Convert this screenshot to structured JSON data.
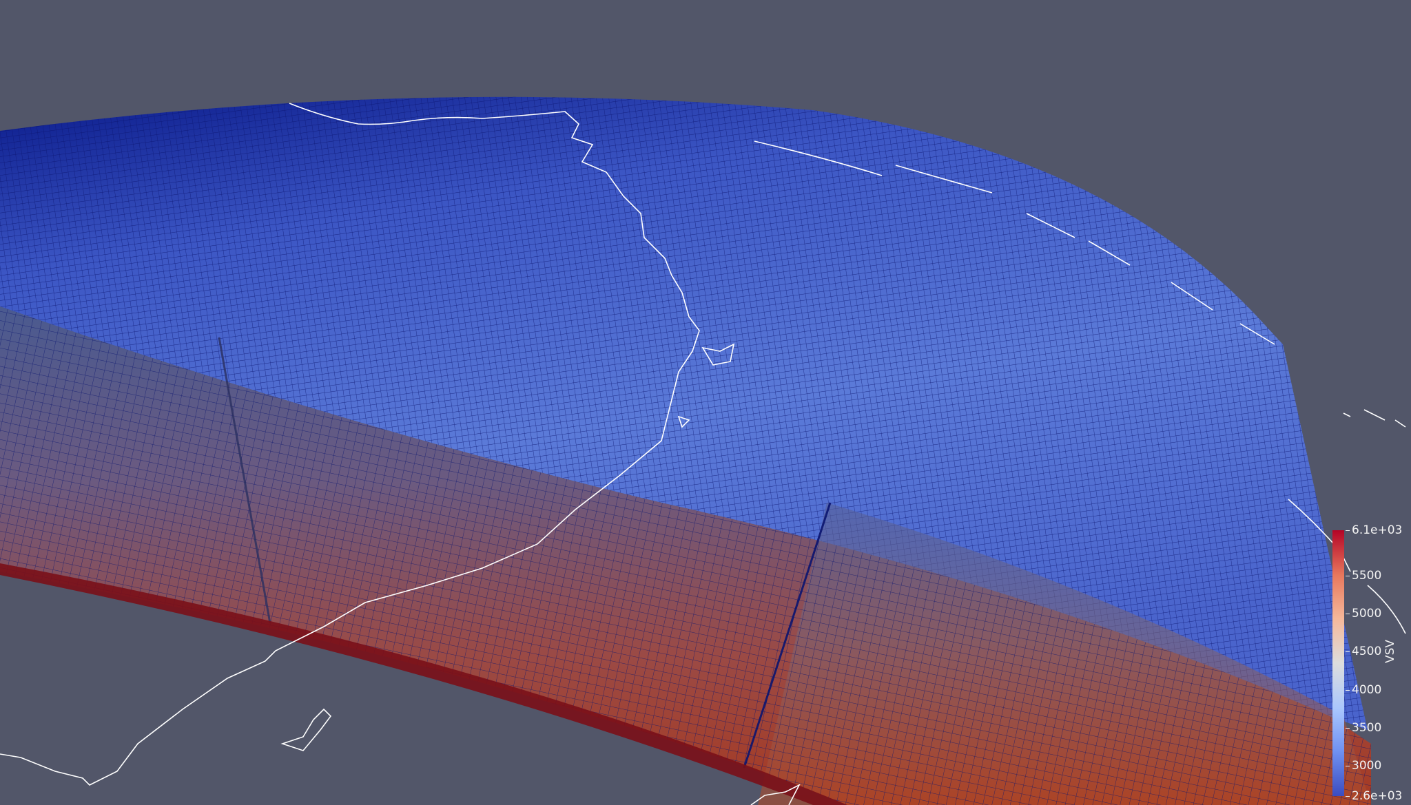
{
  "scene": {
    "background_color": "#525669",
    "surface_color_low": "#0a1a8a",
    "surface_color_mid": "#5a78d8",
    "wall_color_high": "#b01c14",
    "mesh_line_color": "#0a1470",
    "coastline_color": "#ffffff",
    "icons": [
      "mesh-surface",
      "coastline-outline",
      "colorbar-legend"
    ]
  },
  "colorbar": {
    "title": "VSV",
    "max_label": "6.1e+03",
    "min_label": "2.6e+03",
    "tick_labels": [
      "5500",
      "5000",
      "4500",
      "4000",
      "3500",
      "3000"
    ],
    "range": [
      2600,
      6100
    ],
    "tick_values": [
      5500,
      5000,
      4500,
      4000,
      3500,
      3000
    ],
    "colors": [
      "#3b4cc0",
      "#7092f2",
      "#aac7fd",
      "#dddddd",
      "#f6b799",
      "#e8785d",
      "#b40426"
    ]
  }
}
